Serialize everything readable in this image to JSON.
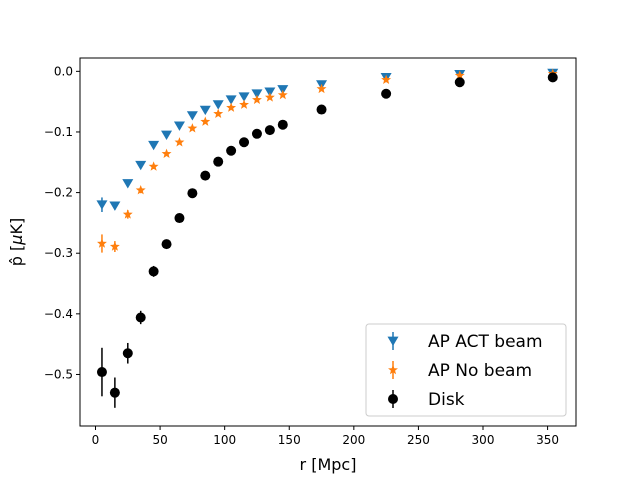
{
  "chart_data": {
    "type": "scatter",
    "title": "",
    "xlabel": "r [Mpc]",
    "ylabel_parts": {
      "prefix": "p̂ [",
      "mu": "μ",
      "suffix": "K]"
    },
    "xlim": [
      -12,
      372
    ],
    "ylim": [
      -0.585,
      0.022
    ],
    "xticks": [
      0,
      50,
      100,
      150,
      200,
      250,
      300,
      350
    ],
    "xtick_labels": [
      "0",
      "50",
      "100",
      "150",
      "200",
      "250",
      "300",
      "350"
    ],
    "yticks": [
      0.0,
      -0.1,
      -0.2,
      -0.3,
      -0.4,
      -0.5
    ],
    "ytick_labels": [
      "0.0",
      "−0.1",
      "−0.2",
      "−0.3",
      "−0.4",
      "−0.5"
    ],
    "grid": false,
    "legend_position": "lower-right",
    "series": [
      {
        "name": "AP ACT beam",
        "marker": "triangle-down",
        "color": "#1f77b4",
        "points": [
          {
            "x": 5,
            "y": -0.22,
            "err": 0.012
          },
          {
            "x": 15,
            "y": -0.222,
            "err": 0.006
          },
          {
            "x": 25,
            "y": -0.185,
            "err": 0.005
          },
          {
            "x": 35,
            "y": -0.155,
            "err": 0.004
          },
          {
            "x": 45,
            "y": -0.122,
            "err": 0.003
          },
          {
            "x": 55,
            "y": -0.105,
            "err": 0.003
          },
          {
            "x": 65,
            "y": -0.09,
            "err": 0.002
          },
          {
            "x": 75,
            "y": -0.073,
            "err": 0.002
          },
          {
            "x": 85,
            "y": -0.064,
            "err": 0.002
          },
          {
            "x": 95,
            "y": -0.055,
            "err": 0.002
          },
          {
            "x": 105,
            "y": -0.047,
            "err": 0.002
          },
          {
            "x": 115,
            "y": -0.042,
            "err": 0.002
          },
          {
            "x": 125,
            "y": -0.037,
            "err": 0.002
          },
          {
            "x": 135,
            "y": -0.034,
            "err": 0.002
          },
          {
            "x": 145,
            "y": -0.03,
            "err": 0.002
          },
          {
            "x": 175,
            "y": -0.022,
            "err": 0.002
          },
          {
            "x": 225,
            "y": -0.01,
            "err": 0.002
          },
          {
            "x": 282,
            "y": -0.005,
            "err": 0.002
          },
          {
            "x": 354,
            "y": -0.003,
            "err": 0.002
          }
        ]
      },
      {
        "name": "AP No beam",
        "marker": "star",
        "color": "#ff7f0e",
        "points": [
          {
            "x": 5,
            "y": -0.284,
            "err": 0.015
          },
          {
            "x": 15,
            "y": -0.289,
            "err": 0.009
          },
          {
            "x": 25,
            "y": -0.236,
            "err": 0.007
          },
          {
            "x": 35,
            "y": -0.196,
            "err": 0.005
          },
          {
            "x": 45,
            "y": -0.157,
            "err": 0.004
          },
          {
            "x": 55,
            "y": -0.136,
            "err": 0.003
          },
          {
            "x": 65,
            "y": -0.117,
            "err": 0.003
          },
          {
            "x": 75,
            "y": -0.094,
            "err": 0.003
          },
          {
            "x": 85,
            "y": -0.083,
            "err": 0.002
          },
          {
            "x": 95,
            "y": -0.07,
            "err": 0.002
          },
          {
            "x": 105,
            "y": -0.06,
            "err": 0.002
          },
          {
            "x": 115,
            "y": -0.055,
            "err": 0.002
          },
          {
            "x": 125,
            "y": -0.047,
            "err": 0.002
          },
          {
            "x": 135,
            "y": -0.043,
            "err": 0.002
          },
          {
            "x": 145,
            "y": -0.039,
            "err": 0.002
          },
          {
            "x": 175,
            "y": -0.029,
            "err": 0.002
          },
          {
            "x": 225,
            "y": -0.014,
            "err": 0.002
          },
          {
            "x": 282,
            "y": -0.007,
            "err": 0.002
          },
          {
            "x": 354,
            "y": -0.004,
            "err": 0.002
          }
        ]
      },
      {
        "name": "Disk",
        "marker": "circle",
        "color": "#000000",
        "points": [
          {
            "x": 5,
            "y": -0.496,
            "err": 0.04
          },
          {
            "x": 15,
            "y": -0.53,
            "err": 0.025
          },
          {
            "x": 25,
            "y": -0.465,
            "err": 0.017
          },
          {
            "x": 35,
            "y": -0.406,
            "err": 0.011
          },
          {
            "x": 45,
            "y": -0.33,
            "err": 0.009
          },
          {
            "x": 55,
            "y": -0.285,
            "err": 0.007
          },
          {
            "x": 65,
            "y": -0.242,
            "err": 0.006
          },
          {
            "x": 75,
            "y": -0.201,
            "err": 0.005
          },
          {
            "x": 85,
            "y": -0.172,
            "err": 0.004
          },
          {
            "x": 95,
            "y": -0.149,
            "err": 0.004
          },
          {
            "x": 105,
            "y": -0.131,
            "err": 0.003
          },
          {
            "x": 115,
            "y": -0.117,
            "err": 0.003
          },
          {
            "x": 125,
            "y": -0.103,
            "err": 0.003
          },
          {
            "x": 135,
            "y": -0.097,
            "err": 0.003
          },
          {
            "x": 145,
            "y": -0.088,
            "err": 0.003
          },
          {
            "x": 175,
            "y": -0.063,
            "err": 0.002
          },
          {
            "x": 225,
            "y": -0.037,
            "err": 0.002
          },
          {
            "x": 282,
            "y": -0.018,
            "err": 0.002
          },
          {
            "x": 354,
            "y": -0.01,
            "err": 0.002
          }
        ]
      }
    ]
  }
}
